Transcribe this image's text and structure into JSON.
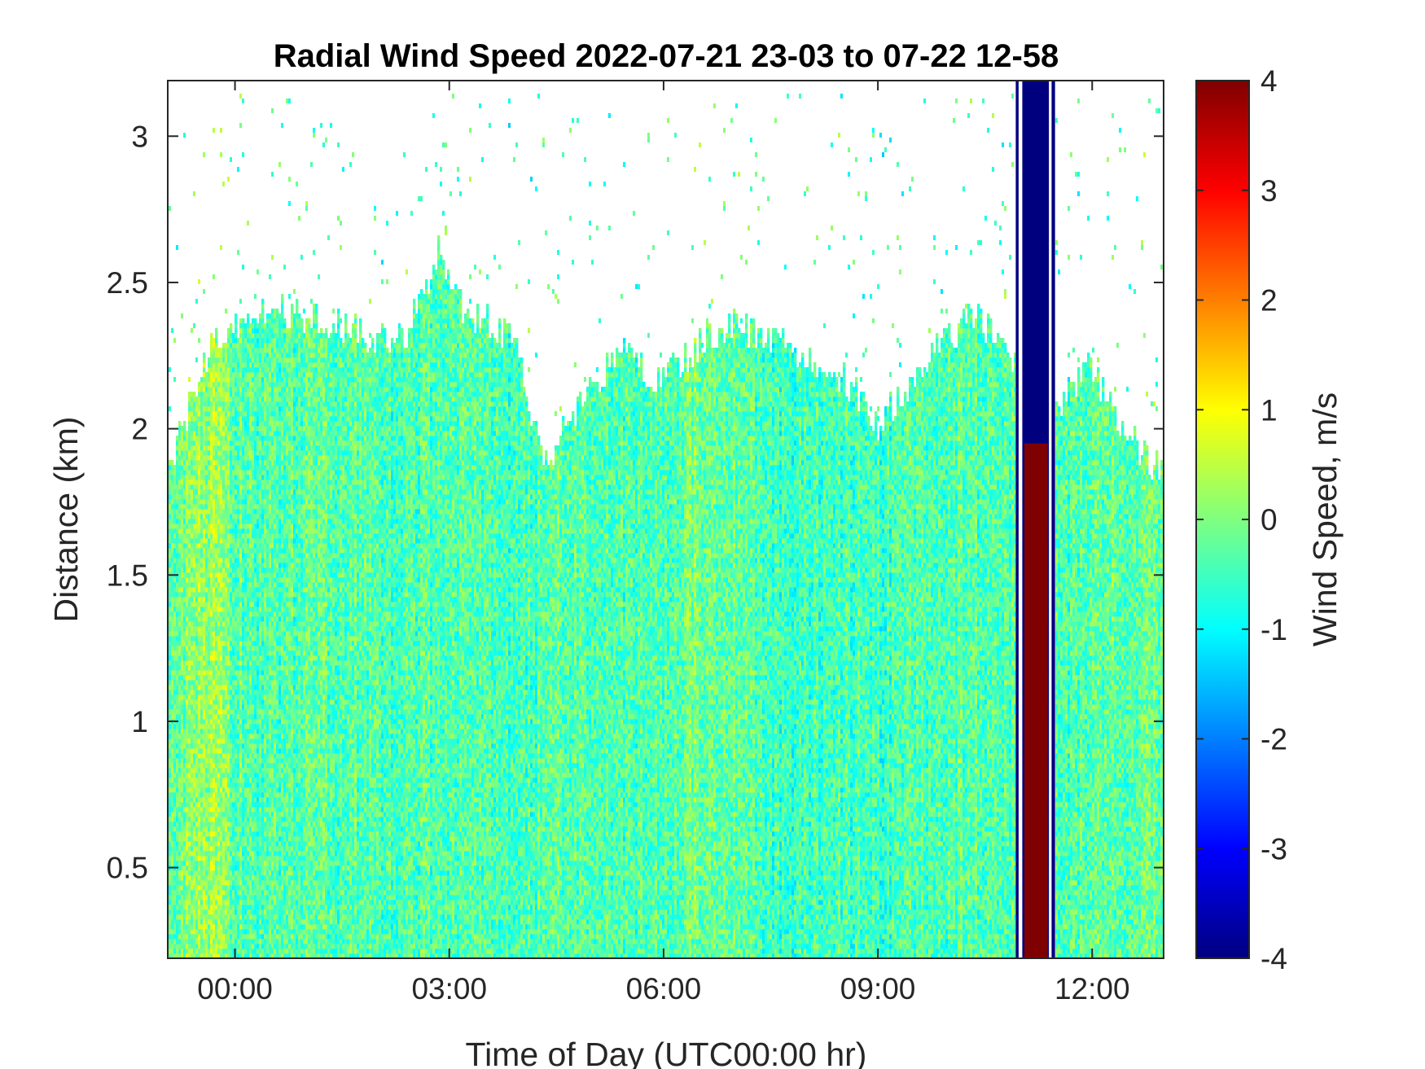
{
  "chart_data": {
    "type": "heatmap",
    "title": "Radial Wind Speed 2022-07-21 23-03 to 07-22 12-58",
    "xlabel": "Time of Day (UTC00:00 hr)",
    "ylabel": "Distance (km)",
    "x_axis": {
      "unit": "hours relative to 2022-07-22 00:00 UTC",
      "range": [
        -0.93,
        13.0
      ],
      "ticks": [
        0,
        3,
        6,
        9,
        12
      ],
      "tick_labels": [
        "00:00",
        "03:00",
        "06:00",
        "09:00",
        "12:00"
      ]
    },
    "y_axis": {
      "unit": "km",
      "range": [
        0.19,
        3.19
      ],
      "ticks": [
        0.5,
        1,
        1.5,
        2,
        2.5,
        3
      ],
      "tick_labels": [
        "0.5",
        "1",
        "1.5",
        "2",
        "2.5",
        "3"
      ]
    },
    "colorbar": {
      "label": "Wind Speed, m/s",
      "range": [
        -4,
        4
      ],
      "ticks": [
        -4,
        -3,
        -2,
        -1,
        0,
        1,
        2,
        3,
        4
      ],
      "tick_labels": [
        "-4",
        "-3",
        "-2",
        "-1",
        "0",
        "1",
        "2",
        "3",
        "4"
      ],
      "colormap": "jet",
      "stops": [
        "#00007f",
        "#0000ff",
        "#007fff",
        "#00ffff",
        "#7fff7f",
        "#ffff00",
        "#ff7f00",
        "#ff0000",
        "#7f0000"
      ]
    },
    "data_top_km": {
      "hours": [
        -0.93,
        -0.6,
        -0.3,
        0.0,
        0.5,
        1.0,
        1.5,
        2.0,
        2.4,
        2.7,
        2.85,
        3.2,
        3.6,
        3.9,
        4.2,
        4.4,
        4.6,
        4.9,
        5.2,
        5.5,
        5.8,
        6.2,
        6.6,
        7.0,
        7.4,
        7.8,
        8.2,
        8.6,
        9.0,
        9.3,
        9.6,
        10.0,
        10.4,
        10.7,
        10.93
      ],
      "top": [
        1.85,
        2.1,
        2.3,
        2.35,
        2.4,
        2.38,
        2.35,
        2.3,
        2.32,
        2.5,
        2.62,
        2.4,
        2.35,
        2.3,
        2.0,
        1.85,
        2.0,
        2.1,
        2.2,
        2.28,
        2.15,
        2.2,
        2.3,
        2.35,
        2.3,
        2.28,
        2.2,
        2.15,
        2.0,
        2.1,
        2.2,
        2.3,
        2.38,
        2.3,
        2.2
      ]
    },
    "data_top_km_after_gap": {
      "hours": [
        11.48,
        11.7,
        11.9,
        12.1,
        12.3,
        12.5,
        12.7,
        12.85,
        13.0
      ],
      "top": [
        2.05,
        2.1,
        2.25,
        2.15,
        2.05,
        2.0,
        1.9,
        1.85,
        1.9
      ]
    },
    "mean_speed_profile": {
      "hours": [
        -0.93,
        -0.6,
        -0.3,
        0.0,
        0.5,
        1.0,
        1.5,
        2.0,
        2.5,
        3.0,
        3.5,
        4.0,
        4.5,
        5.0,
        5.5,
        6.0,
        6.5,
        7.0,
        7.5,
        8.0,
        8.5,
        9.0,
        9.5,
        10.0,
        10.5,
        10.93,
        11.48,
        12.0,
        12.5,
        13.0
      ],
      "speed_ms": [
        -0.3,
        0.1,
        0.2,
        -0.2,
        -0.4,
        -0.3,
        -0.3,
        -0.4,
        -0.4,
        -0.3,
        -0.4,
        -0.5,
        -0.2,
        -0.3,
        -0.4,
        -0.3,
        -0.1,
        -0.2,
        -0.6,
        -0.5,
        -0.4,
        -0.5,
        -0.4,
        -0.3,
        -0.3,
        -0.3,
        -0.4,
        -0.2,
        -0.3,
        -0.2
      ]
    },
    "no_data_regions": [
      {
        "description": "sparse echoes above main layer",
        "x_range": [
          -0.93,
          13.0
        ],
        "y_range": [
          2.2,
          3.19
        ]
      },
      {
        "description": "instrument artifact band",
        "x_range": [
          10.93,
          11.48
        ],
        "y_range": [
          0.19,
          3.19
        ]
      }
    ],
    "artifact_band": {
      "x_range": [
        10.93,
        11.48
      ],
      "outer_value_ms": -4,
      "inner_red_x_range": [
        11.05,
        11.38
      ],
      "inner_red_y_range": [
        0.19,
        1.95
      ],
      "inner_red_value_ms": 4
    },
    "grid": false
  }
}
